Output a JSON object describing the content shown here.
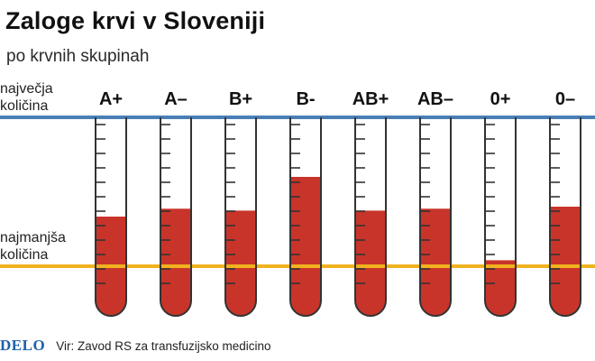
{
  "header": {
    "title": "Zaloge krvi v Sloveniji",
    "subtitle": "po krvnih skupinah"
  },
  "chart_data": {
    "type": "bar",
    "title": "Zaloge krvi v Sloveniji",
    "subtitle": "po krvnih skupinah",
    "categories": [
      "A+",
      "A–",
      "B+",
      "B-",
      "AB+",
      "AB–",
      "0+",
      "0–"
    ],
    "series": [
      {
        "values": [
          0.5,
          0.54,
          0.53,
          0.7,
          0.53,
          0.54,
          0.28,
          0.55
        ]
      }
    ],
    "value_unit": "fill fraction of tube between 'najmanjša količina' (0.25) and 'največja količina' (1.0)",
    "reference_lines": [
      {
        "label": "največja količina",
        "value": 1.0,
        "color": "#4a7fb5"
      },
      {
        "label": "najmanjša količina",
        "value": 0.25,
        "color": "#f0b21e"
      }
    ],
    "ylim": [
      0,
      1.0
    ],
    "grid": false,
    "legend": "none",
    "fill_color": "#c8342a"
  },
  "footer": {
    "logo": "DELO",
    "source": "Vir: Zavod RS za transfuzijsko medicino"
  }
}
